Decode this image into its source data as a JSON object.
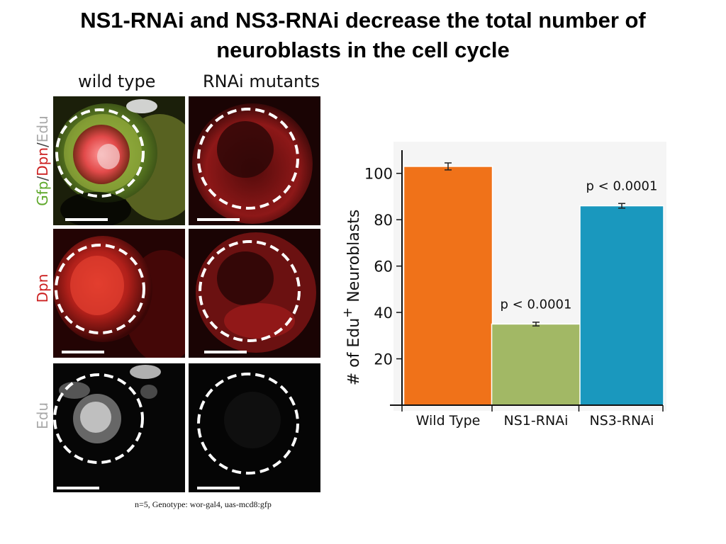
{
  "title": {
    "line1": "NS1-RNAi and NS3-RNAi decrease the total number of",
    "line2": "neuroblasts in the cell cycle"
  },
  "micrographs": {
    "columns": [
      "wild type",
      "RNAi mutants"
    ],
    "rows": [
      {
        "label_parts": [
          "Gfp",
          "/",
          "Dpn",
          "/",
          "Edu"
        ],
        "colors": [
          "#5ea82a",
          "#444444",
          "#cc2020",
          "#444444",
          "#a9a9a9"
        ]
      },
      {
        "label_parts": [
          "Dpn"
        ],
        "colors": [
          "#cc2020"
        ]
      },
      {
        "label_parts": [
          "Edu"
        ],
        "colors": [
          "#a9a9a9"
        ]
      }
    ]
  },
  "footnote": "n=5, Genotype: wor-gal4, uas-mcd8:gfp",
  "chart_data": {
    "type": "bar",
    "categories": [
      "Wild Type",
      "NS1-RNAi",
      "NS3-RNAi"
    ],
    "values": [
      103,
      35,
      86
    ],
    "errors": [
      1.5,
      0.8,
      1.0
    ],
    "colors": [
      "#f07219",
      "#a2b865",
      "#1a98be"
    ],
    "annotations": [
      "",
      "p < 0.0001",
      "p < 0.0001"
    ],
    "ylabel_main": "# of Edu",
    "ylabel_sup": "+",
    "ylabel_tail": " Neuroblasts",
    "yticks": [
      20,
      40,
      60,
      80,
      100
    ],
    "ylim": [
      0,
      110
    ],
    "grid": false
  }
}
